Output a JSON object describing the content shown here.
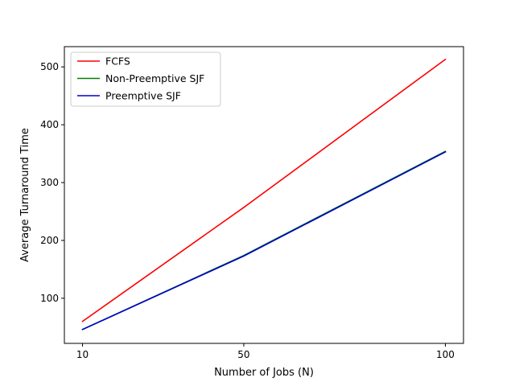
{
  "chart_data": {
    "type": "line",
    "title": "",
    "xlabel": "Number of Jobs (N)",
    "ylabel": "Average Turnaround Time",
    "x": [
      10,
      50,
      100
    ],
    "xticks": [
      10,
      50,
      100
    ],
    "yticks": [
      100,
      200,
      300,
      400,
      500
    ],
    "xlim": [
      5.5,
      104.5
    ],
    "ylim": [
      22,
      535
    ],
    "grid": false,
    "legend_position": "top-left",
    "series": [
      {
        "name": "FCFS",
        "color": "#ff0000",
        "values": [
          60,
          257,
          513
        ]
      },
      {
        "name": "Non-Preemptive SJF",
        "color": "#008000",
        "values": [
          46,
          174,
          354
        ]
      },
      {
        "name": "Preemptive SJF",
        "color": "#0000cd",
        "values": [
          46,
          173,
          353
        ]
      }
    ]
  }
}
